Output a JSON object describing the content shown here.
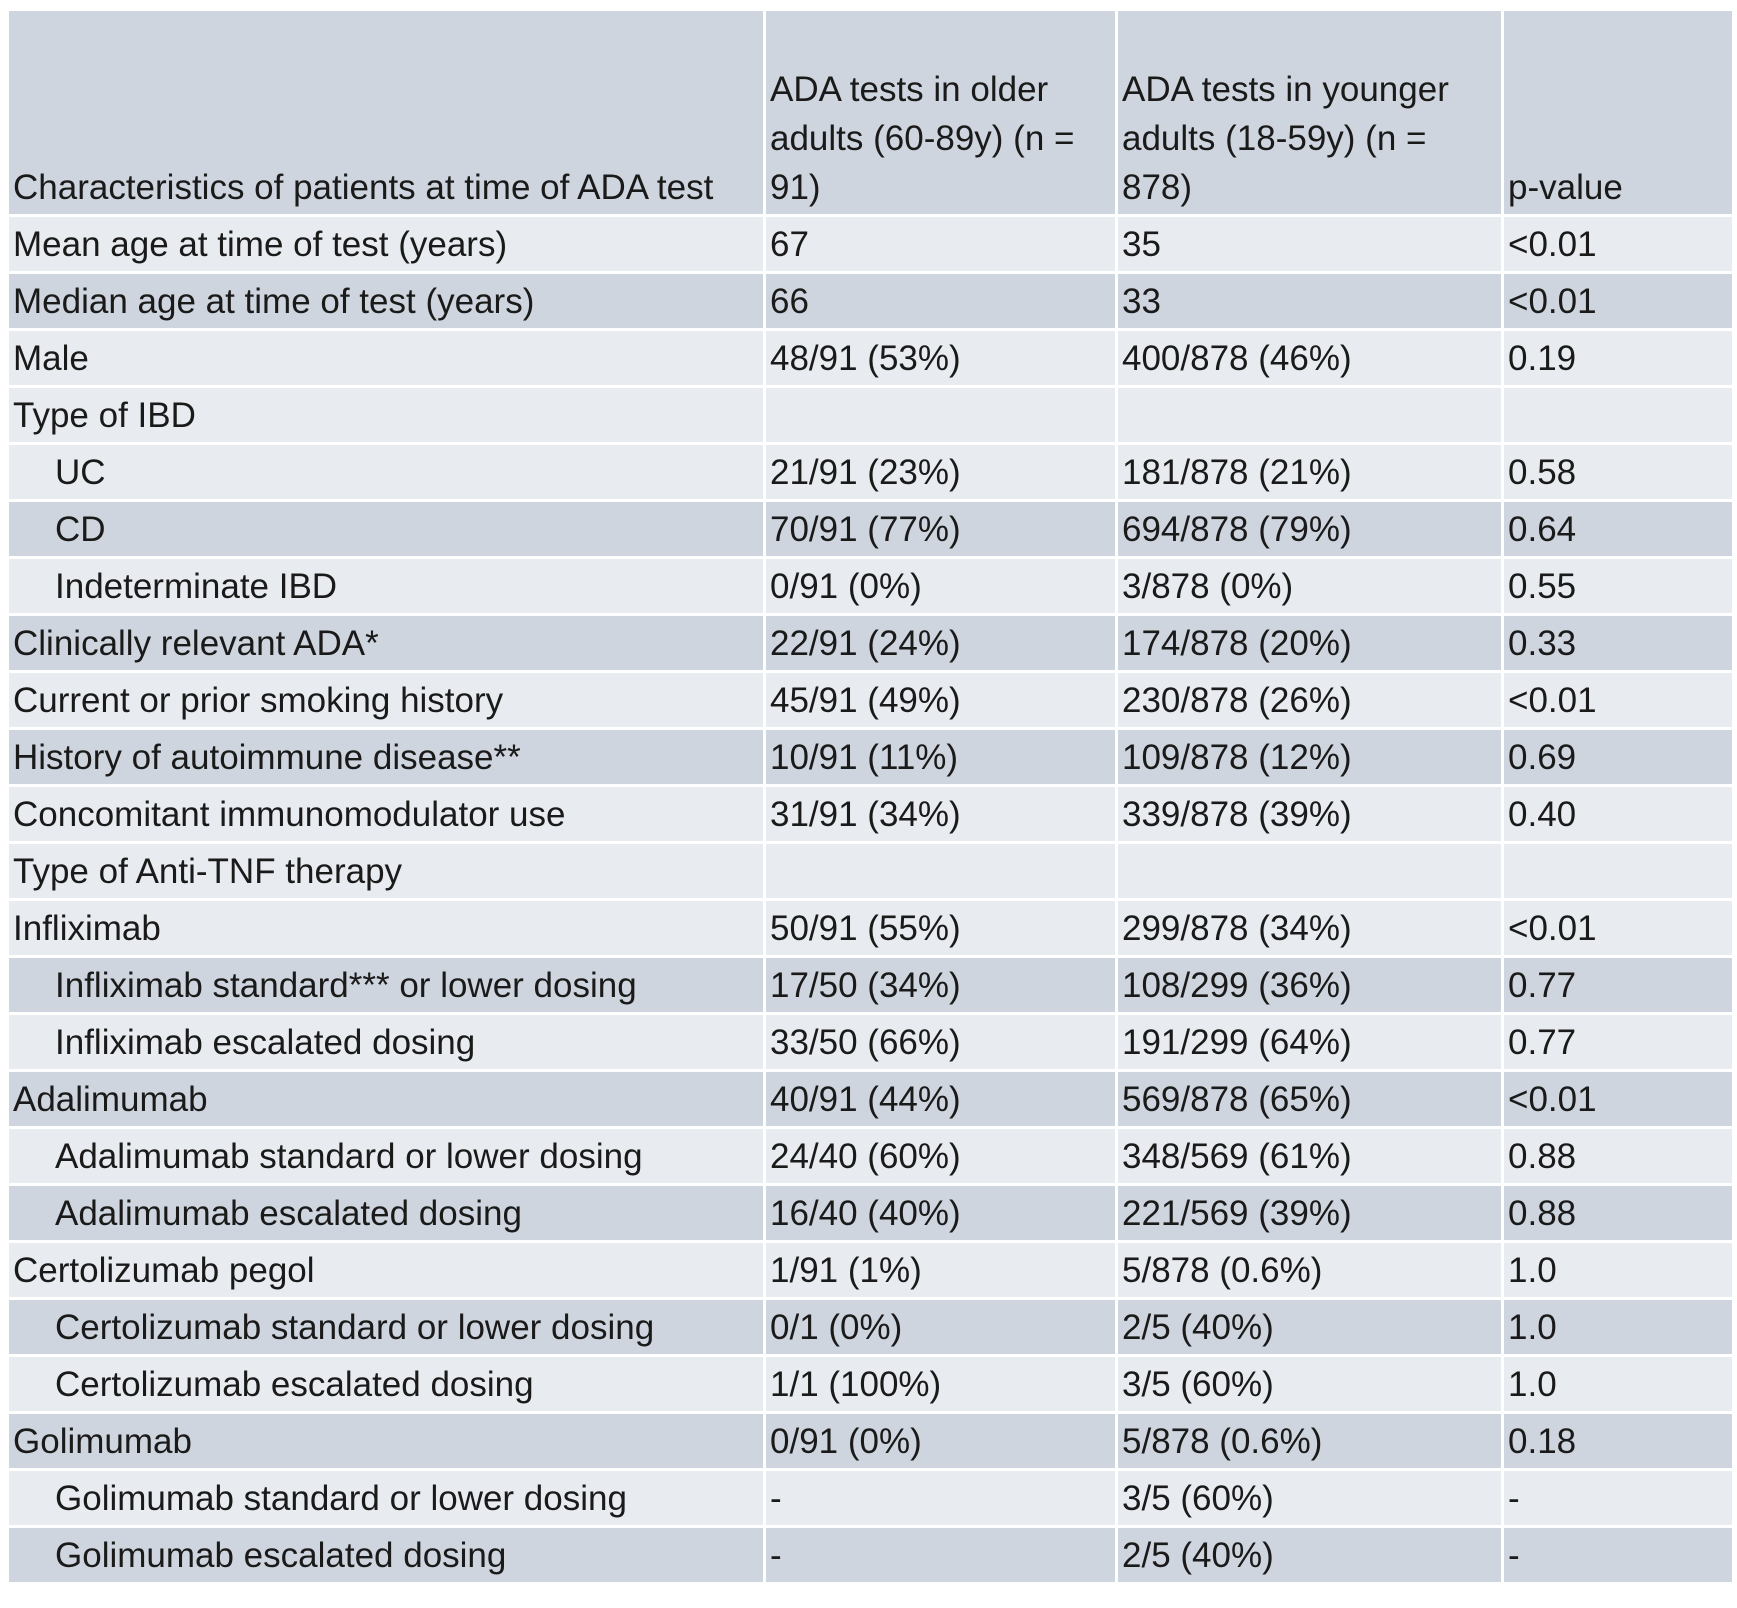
{
  "header": {
    "characteristic": "Characteristics of patients at time of ADA test",
    "older": "ADA tests in older adults (60-89y) (n = 91)",
    "younger": "ADA tests in younger adults (18-59y) (n = 878)",
    "pvalue": "p-value"
  },
  "rows": [
    {
      "label": "Mean age at time of test (years)",
      "older": "67",
      "younger": "35",
      "p": "<0.01",
      "indent": false
    },
    {
      "label": "Median age at time of test (years)",
      "older": "66",
      "younger": "33",
      "p": "<0.01",
      "indent": false
    },
    {
      "label": "Male",
      "older": "48/91 (53%)",
      "younger": "400/878 (46%)",
      "p": "0.19",
      "indent": false
    },
    {
      "label": "Type of IBD",
      "older": "",
      "younger": "",
      "p": "",
      "indent": false
    },
    {
      "label": "UC",
      "older": "21/91 (23%)",
      "younger": "181/878 (21%)",
      "p": "0.58",
      "indent": true
    },
    {
      "label": "CD",
      "older": "70/91 (77%)",
      "younger": "694/878 (79%)",
      "p": "0.64",
      "indent": true
    },
    {
      "label": "Indeterminate IBD",
      "older": "0/91 (0%)",
      "younger": "3/878 (0%)",
      "p": "0.55",
      "indent": true
    },
    {
      "label": "Clinically relevant ADA*",
      "older": "22/91 (24%)",
      "younger": "174/878 (20%)",
      "p": "0.33",
      "indent": false
    },
    {
      "label": "Current or prior smoking history",
      "older": "45/91 (49%)",
      "younger": "230/878 (26%)",
      "p": "<0.01",
      "indent": false
    },
    {
      "label": "History of autoimmune disease**",
      "older": "10/91 (11%)",
      "younger": "109/878 (12%)",
      "p": "0.69",
      "indent": false
    },
    {
      "label": "Concomitant immunomodulator use",
      "older": "31/91 (34%)",
      "younger": "339/878 (39%)",
      "p": "0.40",
      "indent": false
    },
    {
      "label": "Type of Anti-TNF therapy",
      "older": "",
      "younger": "",
      "p": "",
      "indent": false
    },
    {
      "label": "Infliximab",
      "older": "50/91 (55%)",
      "younger": "299/878 (34%)",
      "p": "<0.01",
      "indent": false
    },
    {
      "label": "Infliximab standard*** or lower dosing",
      "older": "17/50 (34%)",
      "younger": "108/299 (36%)",
      "p": "0.77",
      "indent": true
    },
    {
      "label": "Infliximab escalated dosing",
      "older": "33/50 (66%)",
      "younger": "191/299 (64%)",
      "p": "0.77",
      "indent": true
    },
    {
      "label": "Adalimumab",
      "older": "40/91 (44%)",
      "younger": "569/878 (65%)",
      "p": "<0.01",
      "indent": false
    },
    {
      "label": "Adalimumab standard or lower dosing",
      "older": "24/40 (60%)",
      "younger": "348/569 (61%)",
      "p": "0.88",
      "indent": true
    },
    {
      "label": "Adalimumab escalated dosing",
      "older": "16/40 (40%)",
      "younger": "221/569 (39%)",
      "p": "0.88",
      "indent": true
    },
    {
      "label": "Certolizumab pegol",
      "older": "1/91 (1%)",
      "younger": "5/878 (0.6%)",
      "p": "1.0",
      "indent": false
    },
    {
      "label": "Certolizumab standard or lower dosing",
      "older": "0/1 (0%)",
      "younger": "2/5 (40%)",
      "p": "1.0",
      "indent": true
    },
    {
      "label": "Certolizumab escalated dosing",
      "older": "1/1 (100%)",
      "younger": "3/5 (60%)",
      "p": "1.0",
      "indent": true
    },
    {
      "label": "Golimumab",
      "older": "0/91 (0%)",
      "younger": "5/878 (0.6%)",
      "p": "0.18",
      "indent": false
    },
    {
      "label": "Golimumab standard or lower dosing",
      "older": "-",
      "younger": "3/5 (60%)",
      "p": "-",
      "indent": true
    },
    {
      "label": "Golimumab escalated dosing",
      "older": "-",
      "younger": "2/5 (40%)",
      "p": "-",
      "indent": true
    }
  ],
  "colors": {
    "band_light": "#e8ebef",
    "band_dark": "#cfd5de",
    "header": "#cfd5de",
    "text": "#1a1a1a"
  }
}
